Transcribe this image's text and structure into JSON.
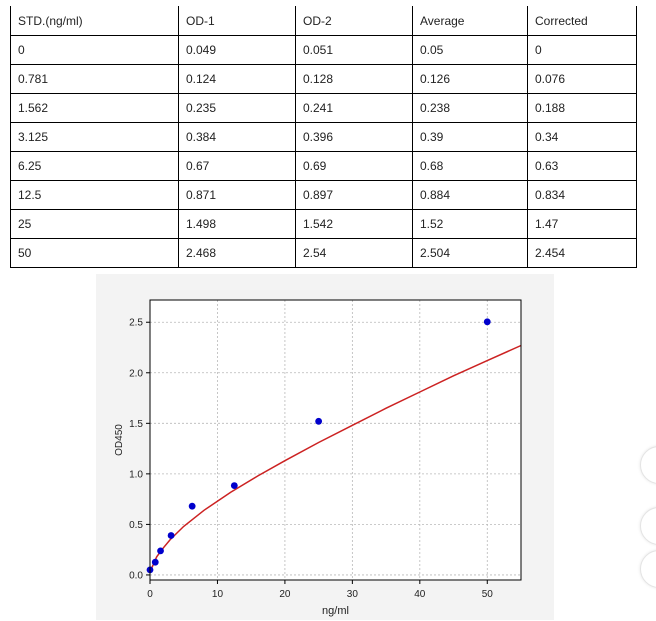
{
  "table": {
    "headers": [
      "STD.(ng/ml)",
      "OD-1",
      "OD-2",
      "Average",
      "Corrected"
    ],
    "rows": [
      [
        "0",
        "0.049",
        "0.051",
        "0.05",
        "0"
      ],
      [
        "0.781",
        "0.124",
        "0.128",
        "0.126",
        "0.076"
      ],
      [
        "1.562",
        "0.235",
        "0.241",
        "0.238",
        "0.188"
      ],
      [
        "3.125",
        "0.384",
        "0.396",
        "0.39",
        "0.34"
      ],
      [
        "6.25",
        "0.67",
        "0.69",
        "0.68",
        "0.63"
      ],
      [
        "12.5",
        "0.871",
        "0.897",
        "0.884",
        "0.834"
      ],
      [
        "25",
        "1.498",
        "1.542",
        "1.52",
        "1.47"
      ],
      [
        "50",
        "2.468",
        "2.54",
        "2.504",
        "2.454"
      ]
    ]
  },
  "chart_data": {
    "type": "scatter",
    "title": "",
    "xlabel": "ng/ml",
    "ylabel": "OD450",
    "xlim": [
      0,
      55
    ],
    "ylim": [
      -0.05,
      2.72
    ],
    "xticks": [
      0,
      10,
      20,
      30,
      40,
      50
    ],
    "yticks": [
      "0.0",
      "0.5",
      "1.0",
      "1.5",
      "2.0",
      "2.5"
    ],
    "grid": true,
    "series": [
      {
        "kind": "points",
        "color": "#0000cc",
        "x": [
          0,
          0.781,
          1.562,
          3.125,
          6.25,
          12.5,
          25,
          50
        ],
        "y": [
          0.05,
          0.126,
          0.238,
          0.39,
          0.68,
          0.884,
          1.52,
          2.504
        ]
      },
      {
        "kind": "fit-curve",
        "color": "#cc2222",
        "x": [
          0,
          1,
          2,
          3,
          5,
          8,
          12,
          16,
          20,
          25,
          30,
          35,
          40,
          45,
          50,
          55
        ],
        "y": [
          0.03,
          0.18,
          0.27,
          0.35,
          0.48,
          0.64,
          0.82,
          0.98,
          1.13,
          1.31,
          1.48,
          1.65,
          1.81,
          1.97,
          2.12,
          2.27
        ]
      }
    ]
  },
  "side_circles": 3
}
